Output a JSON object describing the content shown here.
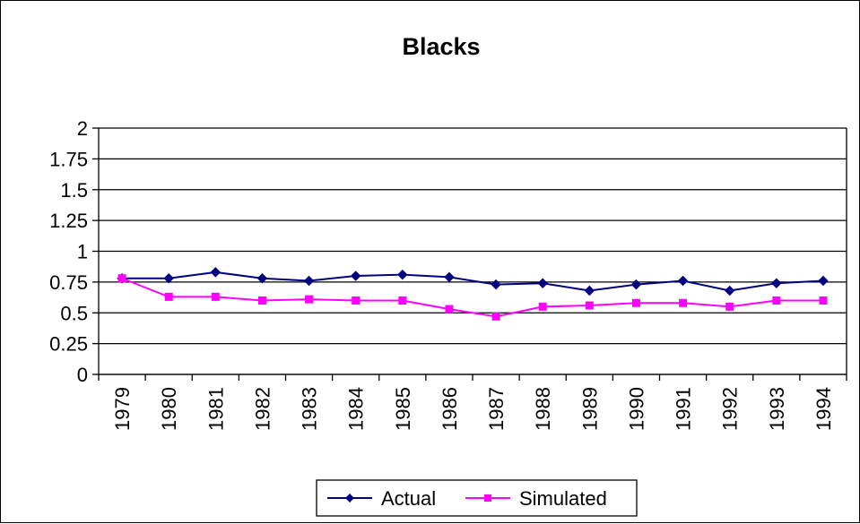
{
  "chart_data": {
    "type": "line",
    "title": "Blacks",
    "xlabel": "",
    "ylabel": "",
    "categories": [
      "1979",
      "1980",
      "1981",
      "1982",
      "1983",
      "1984",
      "1985",
      "1986",
      "1987",
      "1988",
      "1989",
      "1990",
      "1991",
      "1992",
      "1993",
      "1994"
    ],
    "ylim": [
      0,
      2
    ],
    "yticks": [
      "0",
      "0.25",
      "0.5",
      "0.75",
      "1",
      "1.25",
      "1.5",
      "1.75",
      "2"
    ],
    "grid": "horizontal",
    "legend_position": "bottom",
    "series": [
      {
        "name": "Actual",
        "color": "#000080",
        "marker": "diamond",
        "values": [
          0.78,
          0.78,
          0.83,
          0.78,
          0.76,
          0.8,
          0.81,
          0.79,
          0.73,
          0.74,
          0.68,
          0.73,
          0.76,
          0.68,
          0.74,
          0.76
        ]
      },
      {
        "name": "Simulated",
        "color": "#FF00FF",
        "marker": "square",
        "values": [
          0.78,
          0.63,
          0.63,
          0.6,
          0.61,
          0.6,
          0.6,
          0.53,
          0.47,
          0.55,
          0.56,
          0.58,
          0.58,
          0.55,
          0.6,
          0.6
        ]
      }
    ]
  }
}
